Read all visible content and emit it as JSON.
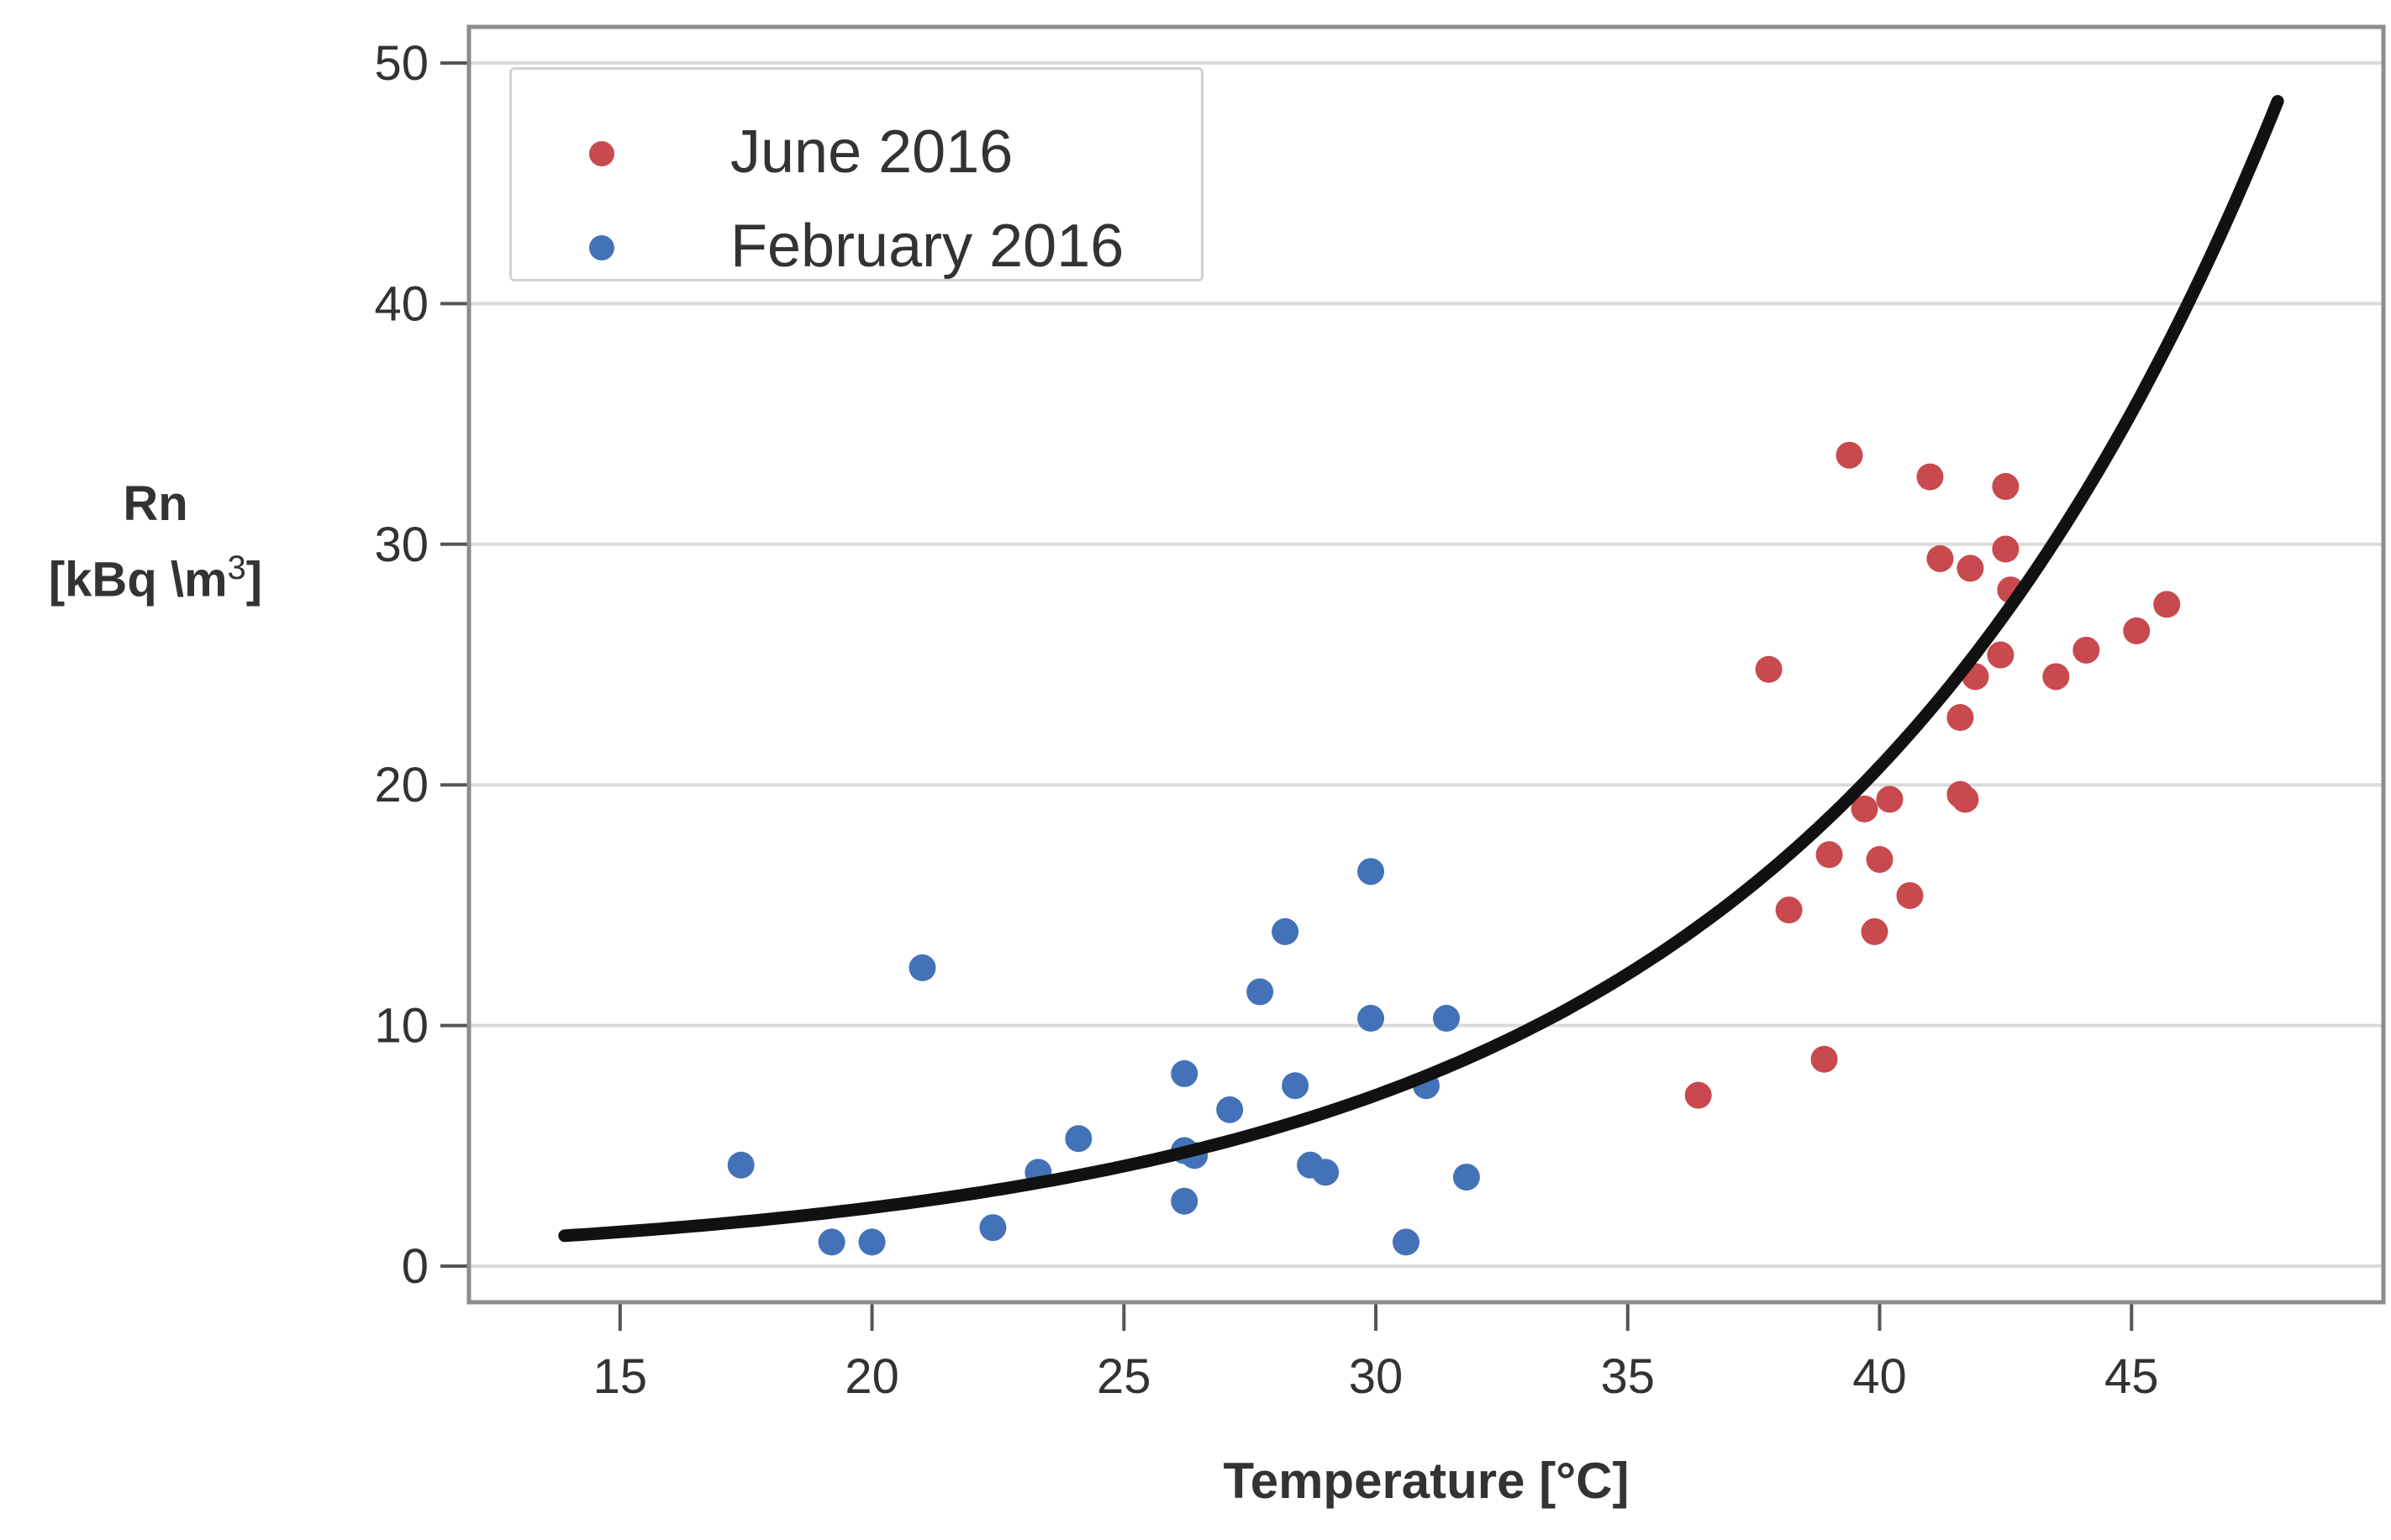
{
  "chart_data": {
    "type": "scatter",
    "title": "",
    "xlabel": "Temperature [°C]",
    "ylabel_line1": "Rn",
    "ylabel_line2": "[kBq \\m",
    "ylabel_superscript": "3",
    "ylabel_close": "]",
    "xlim": [
      12.0,
      50.0
    ],
    "ylim": [
      -1.5,
      51.5
    ],
    "xticks": [
      15,
      20,
      25,
      30,
      35,
      40,
      45
    ],
    "yticks": [
      0,
      10,
      20,
      30,
      40,
      50
    ],
    "grid": "horizontal",
    "legend_position": "top-left",
    "series": [
      {
        "name": "June 2016",
        "color": "#c8494e",
        "points": [
          [
            36.4,
            7.1
          ],
          [
            37.8,
            24.8
          ],
          [
            38.2,
            14.8
          ],
          [
            38.9,
            8.6
          ],
          [
            39.0,
            17.1
          ],
          [
            39.4,
            33.7
          ],
          [
            39.7,
            19.0
          ],
          [
            39.9,
            13.9
          ],
          [
            40.0,
            16.9
          ],
          [
            40.2,
            19.4
          ],
          [
            40.6,
            15.4
          ],
          [
            41.0,
            32.8
          ],
          [
            41.2,
            29.4
          ],
          [
            41.6,
            22.8
          ],
          [
            41.6,
            19.6
          ],
          [
            41.7,
            19.4
          ],
          [
            41.8,
            29.0
          ],
          [
            41.9,
            24.5
          ],
          [
            42.4,
            25.4
          ],
          [
            42.5,
            32.4
          ],
          [
            42.5,
            29.8
          ],
          [
            42.6,
            28.1
          ],
          [
            43.5,
            24.5
          ],
          [
            44.1,
            25.6
          ],
          [
            45.1,
            26.4
          ],
          [
            45.7,
            27.5
          ]
        ]
      },
      {
        "name": "February 2016",
        "color": "#4472b8",
        "points": [
          [
            17.4,
            4.2
          ],
          [
            19.2,
            1.0
          ],
          [
            20.0,
            1.0
          ],
          [
            21.0,
            12.4
          ],
          [
            22.4,
            1.6
          ],
          [
            23.3,
            3.9
          ],
          [
            24.1,
            5.3
          ],
          [
            26.2,
            8.0
          ],
          [
            26.2,
            4.8
          ],
          [
            26.2,
            2.7
          ],
          [
            26.4,
            4.6
          ],
          [
            27.1,
            6.5
          ],
          [
            27.7,
            11.4
          ],
          [
            28.2,
            13.9
          ],
          [
            28.4,
            7.5
          ],
          [
            28.7,
            4.2
          ],
          [
            29.0,
            3.9
          ],
          [
            29.9,
            16.4
          ],
          [
            29.9,
            10.3
          ],
          [
            30.6,
            1.0
          ],
          [
            31.0,
            7.5
          ],
          [
            31.4,
            10.3
          ],
          [
            31.8,
            3.7
          ]
        ]
      }
    ],
    "fit_curve": {
      "name": "exponential fit",
      "color": "#111111",
      "a": 0.285,
      "b": 0.1072,
      "x_start": 13.9,
      "x_end": 47.9
    }
  }
}
